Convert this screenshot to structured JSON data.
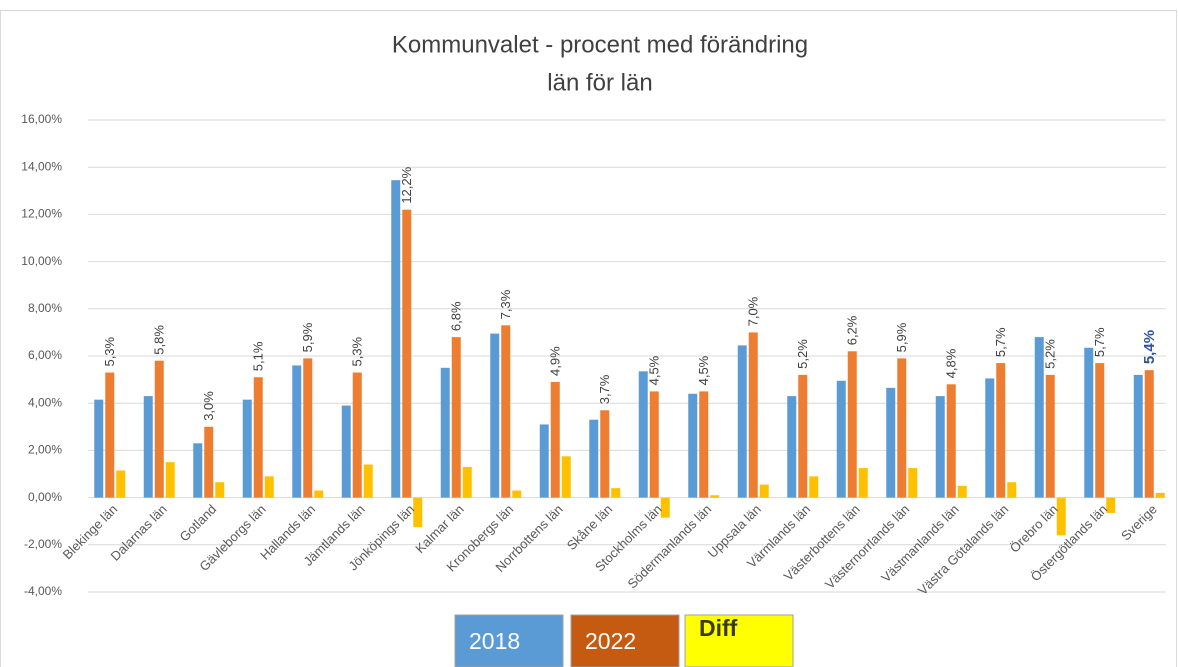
{
  "chart_data": {
    "type": "bar",
    "title_lines": [
      "Kommunvalet - procent med förändring",
      "län för län"
    ],
    "categories": [
      "Blekinge län",
      "Dalarnas län",
      "Gotland",
      "Gävleborgs län",
      "Hallands län",
      "Jämtlands län",
      "Jönköpings län",
      "Kalmar län",
      "Kronobergs län",
      "Norrbottens län",
      "Skåne län",
      "Stockholms län",
      "Södermanlands län",
      "Uppsala län",
      "Värmlands län",
      "Västerbottens län",
      "Västernorrlands län",
      "Västmanlands län",
      "Västra Götalands län",
      "Örebro län",
      "Östergötlands län",
      "Sverige"
    ],
    "series": [
      {
        "name": "2018",
        "color": "#5b9bd5",
        "values": [
          4.15,
          4.3,
          2.3,
          4.15,
          5.6,
          3.9,
          13.45,
          5.5,
          6.95,
          3.1,
          3.3,
          5.35,
          4.4,
          6.45,
          4.3,
          4.95,
          4.65,
          4.3,
          5.05,
          6.8,
          6.35,
          5.2
        ]
      },
      {
        "name": "2022",
        "color": "#ed7d31",
        "values": [
          5.3,
          5.8,
          3.0,
          5.1,
          5.9,
          5.3,
          12.2,
          6.8,
          7.3,
          4.9,
          3.7,
          4.5,
          4.5,
          7.0,
          5.2,
          6.2,
          5.9,
          4.8,
          5.7,
          5.2,
          5.7,
          5.4
        ],
        "value_labels": [
          "5,3%",
          "5,8%",
          "3,0%",
          "5,1%",
          "5,9%",
          "5,3%",
          "12,2%",
          "6,8%",
          "7,3%",
          "4,9%",
          "3,7%",
          "4,5%",
          "4,5%",
          "7,0%",
          "5,2%",
          "6,2%",
          "5,9%",
          "4,8%",
          "5,7%",
          "5,2%",
          "5,7%",
          "5,4%"
        ]
      },
      {
        "name": "Diff",
        "color": "#ffc000",
        "values": [
          1.15,
          1.5,
          0.65,
          0.9,
          0.3,
          1.4,
          -1.25,
          1.3,
          0.3,
          1.75,
          0.4,
          -0.85,
          0.1,
          0.55,
          0.9,
          1.25,
          1.25,
          0.5,
          0.65,
          -1.6,
          -0.65,
          0.2
        ]
      }
    ],
    "ylim": [
      -4,
      16
    ],
    "yticks": [
      {
        "value": -4,
        "label": "-4,00%"
      },
      {
        "value": -2,
        "label": "-2,00%"
      },
      {
        "value": 0,
        "label": "0,00%"
      },
      {
        "value": 2,
        "label": "2,00%"
      },
      {
        "value": 4,
        "label": "4,00%"
      },
      {
        "value": 6,
        "label": "6,00%"
      },
      {
        "value": 8,
        "label": "8,00%"
      },
      {
        "value": 10,
        "label": "10,00%"
      },
      {
        "value": 12,
        "label": "12,00%"
      },
      {
        "value": 14,
        "label": "14,00%"
      },
      {
        "value": 16,
        "label": "16,00%"
      }
    ],
    "grid": true
  }
}
